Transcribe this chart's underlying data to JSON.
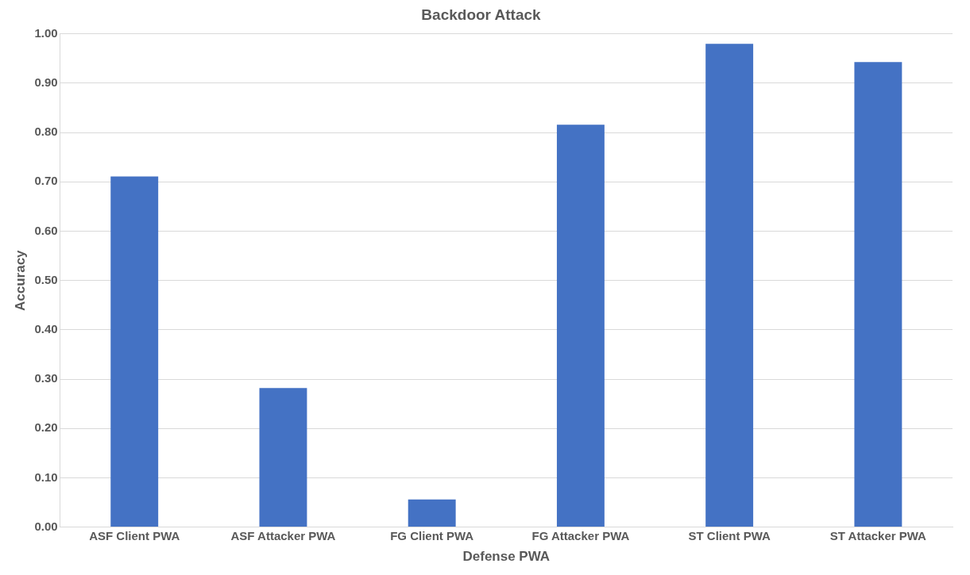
{
  "chart_data": {
    "type": "bar",
    "title": "Backdoor Attack",
    "xlabel": "Defense PWA",
    "ylabel": "Accuracy",
    "categories": [
      "ASF Client PWA",
      "ASF Attacker PWA",
      "FG Client PWA",
      "FG Attacker PWA",
      "ST Client PWA",
      "ST Attacker PWA"
    ],
    "values": [
      0.711,
      0.282,
      0.056,
      0.816,
      0.98,
      0.943
    ],
    "color": "#4472c4",
    "ylim": [
      0,
      1
    ],
    "yticks": [
      {
        "value": 0,
        "label": "0.00"
      },
      {
        "value": 0.1,
        "label": "0.10"
      },
      {
        "value": 0.2,
        "label": "0.20"
      },
      {
        "value": 0.3,
        "label": "0.30"
      },
      {
        "value": 0.4,
        "label": "0.40"
      },
      {
        "value": 0.5,
        "label": "0.50"
      },
      {
        "value": 0.6,
        "label": "0.60"
      },
      {
        "value": 0.7,
        "label": "0.70"
      },
      {
        "value": 0.8,
        "label": "0.80"
      },
      {
        "value": 0.9,
        "label": "0.90"
      },
      {
        "value": 1,
        "label": "1.00"
      }
    ],
    "grid": "y",
    "legend": false
  }
}
